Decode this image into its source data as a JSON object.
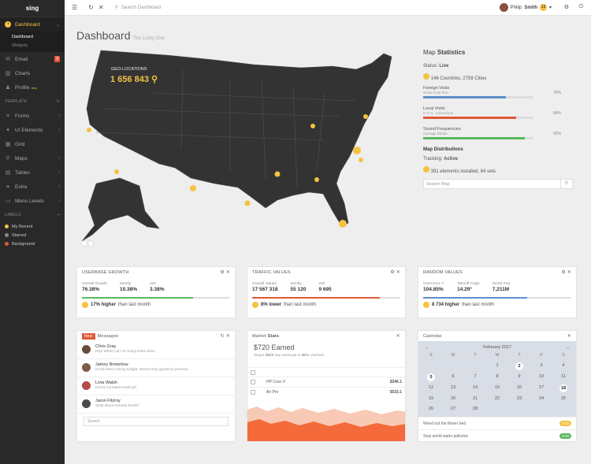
{
  "sidebar": {
    "logo": "sing",
    "items": [
      {
        "label": "Dashboard",
        "icon": "dashboard-icon"
      },
      {
        "label": "Email",
        "icon": "envelope-icon",
        "badge": "9"
      },
      {
        "label": "Charts",
        "icon": "bar-chart-icon"
      },
      {
        "label": "Profile",
        "icon": "user-icon",
        "tag": "new"
      }
    ],
    "sub": [
      "Dashboard",
      "Widgets"
    ],
    "template_label": "TEMPLATE",
    "template_items": [
      "Forms",
      "UI Elements",
      "Grid",
      "Maps",
      "Tables",
      "Extra",
      "Menu Levels"
    ],
    "labels_label": "LABELS",
    "labels": [
      {
        "name": "My Recent",
        "color": "#f5c242"
      },
      {
        "name": "Starred",
        "color": "#888888"
      },
      {
        "name": "Background",
        "color": "#e0583a"
      }
    ]
  },
  "topbar": {
    "search_placeholder": "Search Dashboard",
    "user": "Philip",
    "user_last": "Smith",
    "badge": "13"
  },
  "header": {
    "title": "Dashboard",
    "subtitle": "The Lucky One"
  },
  "map": {
    "geo_label": "GEO-LOCATIONS",
    "geo_value": "1 656 843"
  },
  "stats": {
    "title_a": "Map",
    "title_b": "Statistics",
    "status_label": "Status:",
    "status": "Live",
    "countries": "146 Countries, 2759 Cities",
    "bars": [
      {
        "label": "Foreign Visits",
        "sub": "Some Cool Text",
        "pct": "75%",
        "value": 0.75,
        "color": "#5d8fc9"
      },
      {
        "label": "Local Visits",
        "sub": "P. to C. Conversion",
        "pct": "84%",
        "value": 0.84,
        "color": "#e0583a"
      },
      {
        "label": "Sound Frequencies",
        "sub": "Average Bitrate",
        "pct": "92%",
        "value": 0.92,
        "color": "#5cb85c"
      }
    ],
    "dist": "Map Distributions",
    "tracking_label": "Tracking:",
    "tracking": "Active",
    "installed": "391 elements installed, 84 sets",
    "search": "Search Map"
  },
  "cards": [
    {
      "title": "USERBASE GROWTH",
      "cols": [
        [
          "Overall Growth",
          "76.38%"
        ],
        [
          "Montly",
          "10.38%"
        ],
        [
          "24h",
          "3.38%"
        ]
      ],
      "progress": 0.75,
      "color": "#5cb85c",
      "foot_b": "17% higher",
      "foot": "than last month"
    },
    {
      "title": "TRAFFIC VALUES",
      "cols": [
        [
          "Overall Values",
          "17 567 318"
        ],
        [
          "Montly",
          "55 120"
        ],
        [
          "24h",
          "9 695"
        ]
      ],
      "progress": 0.86,
      "color": "#e0583a",
      "foot_b": "8% lower",
      "foot": "than last month"
    },
    {
      "title": "RANDOM VALUES",
      "cols": [
        [
          "Overcome T.",
          "104.85%"
        ],
        [
          "Takeoff Angle",
          "14.29°"
        ],
        [
          "World Pop.",
          "7,211M"
        ]
      ],
      "progress": 0.7,
      "color": "#5d8fc9",
      "foot_b": "8 734 higher",
      "foot": "than last month"
    }
  ],
  "messages": {
    "tag": "New",
    "title": "Messages",
    "items": [
      {
        "name": "Chris Gray",
        "text": "Hey! What's up? So many times since",
        "color": "#6a4a3a"
      },
      {
        "name": "Jamey Brownlow",
        "text": "Good news coming tonight. Seems they agreed to proceed",
        "color": "#7a5c4a"
      },
      {
        "name": "Livia Walsh",
        "text": "Check my latest email plz!",
        "color": "#b44a4a"
      },
      {
        "name": "Jaron Fitzroy",
        "text": "What about summer break?",
        "color": "#4a4a4a"
      }
    ],
    "search": "Search"
  },
  "market": {
    "title_a": "Market",
    "title_b": "Stats",
    "earned": "$720 Earned",
    "target": "Target",
    "target_val": "$820",
    "target_mid": "day earnings is",
    "target_pct": "96%",
    "target_end": "reached.",
    "rows": [
      {
        "name": "HP Core i7",
        "price": "$346.1"
      },
      {
        "name": "Air Pro",
        "price": "$533.1"
      }
    ]
  },
  "calendar": {
    "title": "Calendar",
    "month": "February 2017",
    "weekdays": [
      "S",
      "M",
      "T",
      "W",
      "T",
      "F",
      "S"
    ],
    "days": [
      "",
      "",
      "",
      "1",
      "2",
      "3",
      "4",
      "5",
      "6",
      "7",
      "8",
      "9",
      "10",
      "11",
      "12",
      "13",
      "14",
      "15",
      "16",
      "17",
      "18",
      "19",
      "20",
      "21",
      "22",
      "23",
      "24",
      "25",
      "26",
      "27",
      "28",
      "",
      "",
      "",
      ""
    ],
    "events": [
      {
        "text": "Weed out the flower bed",
        "time": "9:45",
        "color": "#f5c242"
      },
      {
        "text": "Stop world water pollution",
        "time": "9:45",
        "color": "#5cb85c"
      }
    ]
  }
}
